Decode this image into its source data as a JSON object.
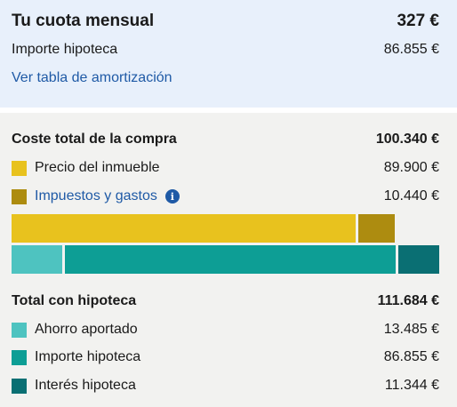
{
  "monthly": {
    "title": "Tu cuota mensual",
    "value": "327 €",
    "mortgage_label": "Importe hipoteca",
    "mortgage_value": "86.855 €",
    "amortization_link": "Ver tabla de amortización"
  },
  "purchase": {
    "title": "Coste total de la compra",
    "total": "100.340 €",
    "items": [
      {
        "label": "Precio del inmueble",
        "value": "89.900 €",
        "color": "#e8c21e"
      },
      {
        "label": "Impuestos y gastos",
        "value": "10.440 €",
        "color": "#ad8c10",
        "info_icon": "info-icon"
      }
    ]
  },
  "financing": {
    "title": "Total con hipoteca",
    "total": "111.684 €",
    "items": [
      {
        "label": "Ahorro aportado",
        "value": "13.485 €",
        "color": "#4ec3c0"
      },
      {
        "label": "Importe hipoteca",
        "value": "86.855 €",
        "color": "#0d9e95"
      },
      {
        "label": "Interés hipoteca",
        "value": "11.344 €",
        "color": "#0a6f73"
      }
    ]
  }
}
